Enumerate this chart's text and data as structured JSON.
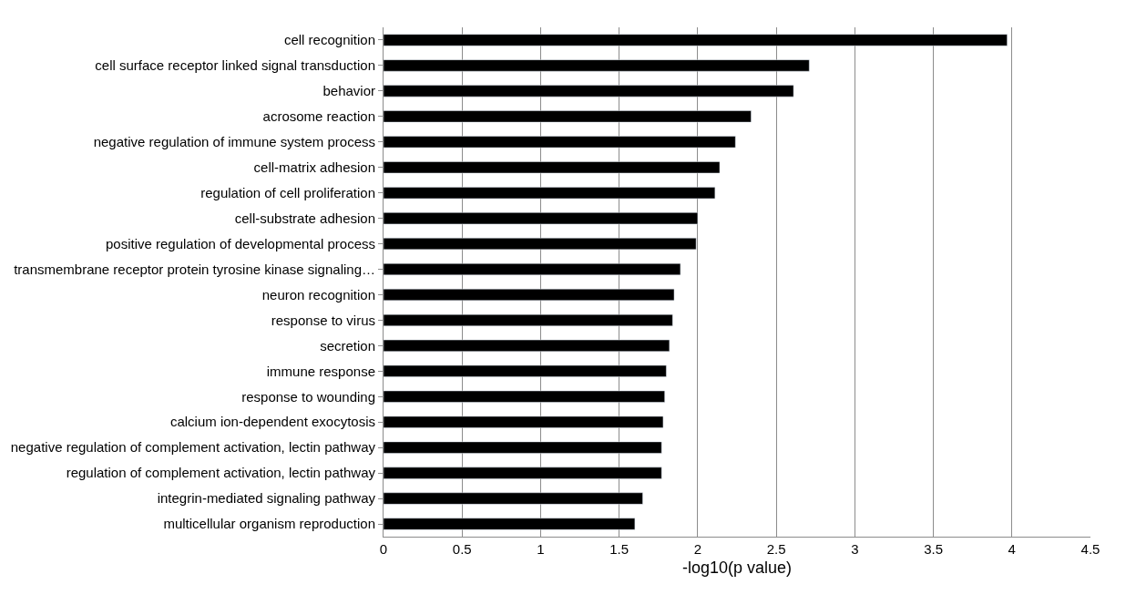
{
  "chart_data": {
    "type": "bar",
    "orientation": "horizontal",
    "xlabel": "-log10(p value)",
    "categories": [
      "cell recognition",
      "cell surface receptor linked signal transduction",
      "behavior",
      "acrosome reaction",
      "negative regulation of immune system process",
      "cell-matrix adhesion",
      "regulation of cell proliferation",
      "cell-substrate adhesion",
      "positive regulation of developmental process",
      "transmembrane receptor protein tyrosine kinase signaling…",
      "neuron recognition",
      "response to virus",
      "secretion",
      "immune response",
      "response to wounding",
      "calcium ion-dependent exocytosis",
      "negative regulation of complement activation, lectin pathway",
      "regulation of complement activation, lectin pathway",
      "integrin-mediated signaling pathway",
      "multicellular organism reproduction"
    ],
    "values": [
      3.97,
      2.71,
      2.61,
      2.34,
      2.24,
      2.14,
      2.11,
      2.0,
      1.99,
      1.89,
      1.85,
      1.84,
      1.82,
      1.8,
      1.79,
      1.78,
      1.77,
      1.77,
      1.65,
      1.6
    ],
    "color": "#000000",
    "xlim": [
      0,
      4.5
    ],
    "xticks": [
      0,
      0.5,
      1,
      1.5,
      2,
      2.5,
      3,
      3.5,
      4,
      4.5
    ],
    "grid": "x",
    "legend": false
  }
}
